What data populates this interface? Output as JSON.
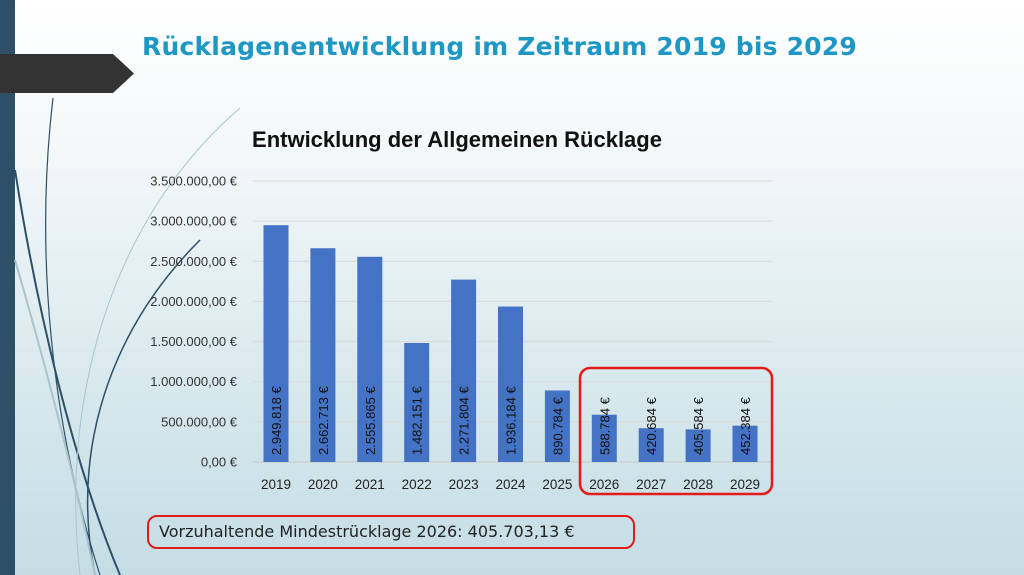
{
  "slide": {
    "title": "Rücklagenentwicklung im Zeitraum 2019 bis 2029",
    "note": "Vorzuhaltende Mindestrücklage 2026: 405.703,13 €",
    "colors": {
      "title": "#1f97c4",
      "bar": "#4472c4",
      "highlight_border": "#e31b1b",
      "sidebar": "#2d5066"
    }
  },
  "chart_data": {
    "type": "bar",
    "title": "Entwicklung der Allgemeinen Rücklage",
    "categories": [
      "2019",
      "2020",
      "2021",
      "2022",
      "2023",
      "2024",
      "2025",
      "2026",
      "2027",
      "2028",
      "2029"
    ],
    "values": [
      2949818,
      2662713,
      2555865,
      1482151,
      2271804,
      1936184,
      890784,
      588784,
      420684,
      405584,
      452384
    ],
    "data_labels": [
      "2.949.818 €",
      "2.662.713 €",
      "2.555.865 €",
      "1.482.151 €",
      "2.271.804 €",
      "1.936.184 €",
      "890.784 €",
      "588.784 €",
      "420.684 €",
      "405.584 €",
      "452.384 €"
    ],
    "y_ticks": [
      "0,00 €",
      "500.000,00 €",
      "1.000.000,00 €",
      "1.500.000,00 €",
      "2.000.000,00 €",
      "2.500.000,00 €",
      "3.000.000,00 €",
      "3.500.000,00 €"
    ],
    "ylim": [
      0,
      3500000
    ],
    "grid": true,
    "highlighted_categories": [
      "2026",
      "2027",
      "2028",
      "2029"
    ]
  }
}
